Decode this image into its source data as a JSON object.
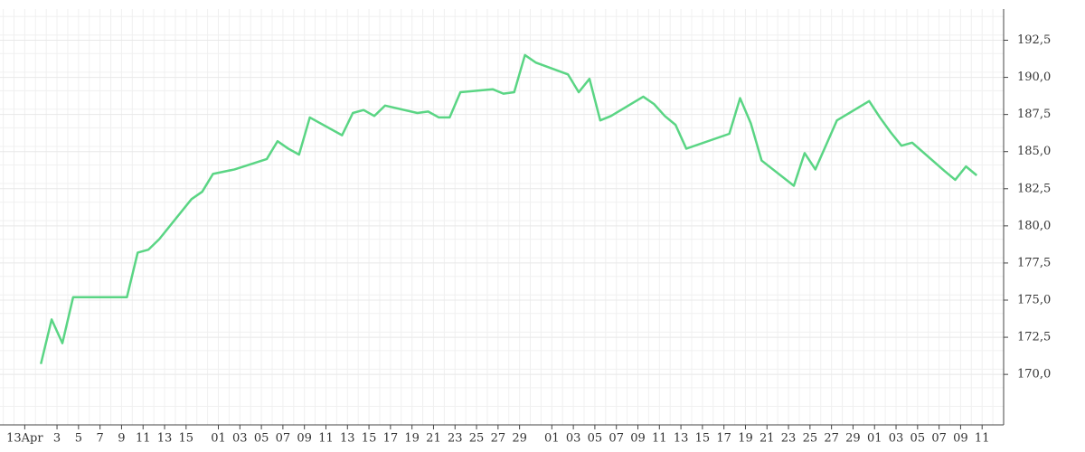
{
  "chart_data": {
    "type": "line",
    "x": [
      1.5,
      2.5,
      3.5,
      4.5,
      9.5,
      10.5,
      11.5,
      12.5,
      15.5,
      16.5,
      17.5,
      19.5,
      22.5,
      23.5,
      24.5,
      25.5,
      26.5,
      29.5,
      30.5,
      31.5,
      32.5,
      33.5,
      36.5,
      37.5,
      38.5,
      39.5,
      40.5,
      43.5,
      44.5,
      45.5,
      46.5,
      47.5,
      50.5,
      51.5,
      52.5,
      53.5,
      54.5,
      57.5,
      58.5,
      59.5,
      60.5,
      61.5,
      65.5,
      66.5,
      67.5,
      68.5,
      71.5,
      72.5,
      73.5,
      75.5,
      78.5,
      79.5,
      80.5,
      81.5,
      82.5,
      85.5,
      86.5,
      87.5,
      88.5
    ],
    "series": [
      {
        "color": "#5ad584",
        "values": [
          170.7,
          173.7,
          172.1,
          175.2,
          175.2,
          178.2,
          178.4,
          179.1,
          181.8,
          182.3,
          183.5,
          183.8,
          184.5,
          185.7,
          185.2,
          184.8,
          187.3,
          186.1,
          187.6,
          187.8,
          187.4,
          188.1,
          187.6,
          187.7,
          187.3,
          187.3,
          189.0,
          189.2,
          188.9,
          189.0,
          191.5,
          191.0,
          190.2,
          189.0,
          189.9,
          187.1,
          187.4,
          188.7,
          188.2,
          187.4,
          186.8,
          185.2,
          186.2,
          188.6,
          186.9,
          184.4,
          182.7,
          184.9,
          183.8,
          187.1,
          188.4,
          187.3,
          186.3,
          185.4,
          185.6,
          183.7,
          183.1,
          184.0,
          183.4
        ]
      }
    ],
    "xlim": [
      -2.3,
      91
    ],
    "xticks": [
      {
        "value": 0,
        "label": "13Apr"
      },
      3,
      5,
      7,
      9,
      11,
      13,
      15,
      {
        "value": 18,
        "label": "01"
      },
      {
        "value": 20,
        "label": "03"
      },
      {
        "value": 22,
        "label": "05"
      },
      {
        "value": 24,
        "label": "07"
      },
      {
        "value": 26,
        "label": "09"
      },
      {
        "value": 28,
        "label": "11"
      },
      {
        "value": 30,
        "label": "13"
      },
      {
        "value": 32,
        "label": "15"
      },
      {
        "value": 34,
        "label": "17"
      },
      {
        "value": 36,
        "label": "19"
      },
      {
        "value": 38,
        "label": "21"
      },
      {
        "value": 40,
        "label": "23"
      },
      {
        "value": 42,
        "label": "25"
      },
      {
        "value": 44,
        "label": "27"
      },
      {
        "value": 46,
        "label": "29"
      },
      {
        "value": 49,
        "label": "01"
      },
      {
        "value": 51,
        "label": "03"
      },
      {
        "value": 53,
        "label": "05"
      },
      {
        "value": 55,
        "label": "07"
      },
      {
        "value": 57,
        "label": "09"
      },
      {
        "value": 59,
        "label": "11"
      },
      {
        "value": 61,
        "label": "13"
      },
      {
        "value": 63,
        "label": "15"
      },
      {
        "value": 65,
        "label": "17"
      },
      {
        "value": 67,
        "label": "19"
      },
      {
        "value": 69,
        "label": "21"
      },
      {
        "value": 71,
        "label": "23"
      },
      {
        "value": 73,
        "label": "25"
      },
      {
        "value": 75,
        "label": "27"
      },
      {
        "value": 77,
        "label": "29"
      },
      {
        "value": 79,
        "label": "01"
      },
      {
        "value": 81,
        "label": "03"
      },
      {
        "value": 83,
        "label": "05"
      },
      {
        "value": 85,
        "label": "07"
      },
      {
        "value": 87,
        "label": "09"
      },
      {
        "value": 89,
        "label": "11"
      }
    ],
    "ylim": [
      166.6,
      194.6
    ],
    "yticks": [
      {
        "value": 170,
        "label": "170,0"
      },
      {
        "value": 172.5,
        "label": "172,5"
      },
      {
        "value": 175,
        "label": "175,0"
      },
      {
        "value": 177.5,
        "label": "177,5"
      },
      {
        "value": 180,
        "label": "180,0"
      },
      {
        "value": 182.5,
        "label": "182,5"
      },
      {
        "value": 185,
        "label": "185,0"
      },
      {
        "value": 187.5,
        "label": "187,5"
      },
      {
        "value": 190,
        "label": "190,0"
      },
      {
        "value": 192.5,
        "label": "192,5"
      }
    ],
    "grid": true
  }
}
